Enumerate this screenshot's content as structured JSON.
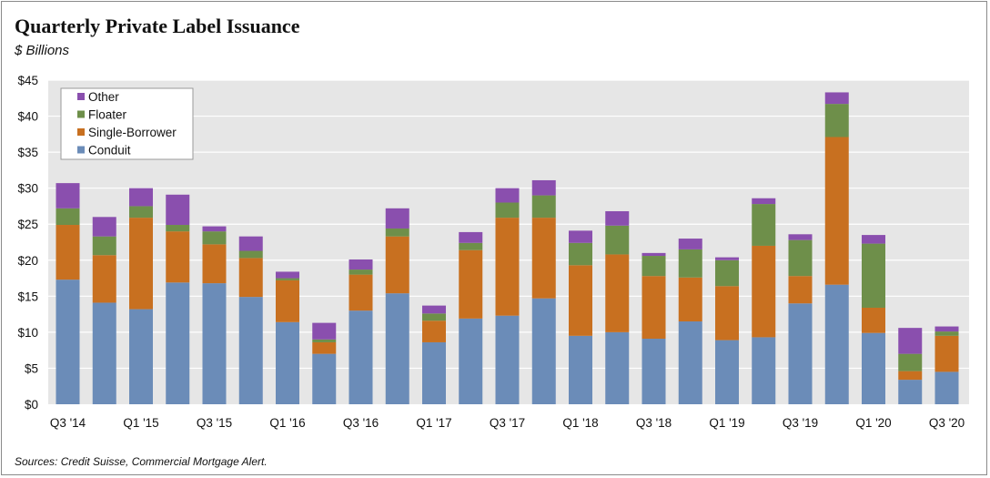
{
  "title": "Quarterly Private Label Issuance",
  "subtitle": "$ Billions",
  "source": "Sources: Credit Suisse, Commercial Mortgage Alert.",
  "chart_data": {
    "type": "bar",
    "stacked": true,
    "categories": [
      "Q3 '14",
      "Q4 '14",
      "Q1 '15",
      "Q2 '15",
      "Q3 '15",
      "Q4 '15",
      "Q1 '16",
      "Q2 '16",
      "Q3 '16",
      "Q4 '16",
      "Q1 '17",
      "Q2 '17",
      "Q3 '17",
      "Q4 '17",
      "Q1 '18",
      "Q2 '18",
      "Q3 '18",
      "Q4 '18",
      "Q1 '19",
      "Q2 '19",
      "Q3 '19",
      "Q4 '19",
      "Q1 '20",
      "Q2 '20",
      "Q3 '20"
    ],
    "x_tick_labels": [
      "Q3 '14",
      "",
      "Q1 '15",
      "",
      "Q3 '15",
      "",
      "Q1 '16",
      "",
      "Q3 '16",
      "",
      "Q1 '17",
      "",
      "Q3 '17",
      "",
      "Q1 '18",
      "",
      "Q3 '18",
      "",
      "Q1 '19",
      "",
      "Q3 '19",
      "",
      "Q1 '20",
      "",
      "Q3 '20"
    ],
    "y_ticks": [
      0,
      5,
      10,
      15,
      20,
      25,
      30,
      35,
      40,
      45
    ],
    "y_tick_labels": [
      "$0",
      "$5",
      "$10",
      "$15",
      "$20",
      "$25",
      "$30",
      "$35",
      "$40",
      "$45"
    ],
    "ylim": [
      0,
      45
    ],
    "grid": true,
    "legend_position": "top-left",
    "series": [
      {
        "name": "Conduit",
        "color": "#6b8cb8",
        "values": [
          17.3,
          14.1,
          13.2,
          16.9,
          16.8,
          14.9,
          11.4,
          7.0,
          13.0,
          15.4,
          8.6,
          11.9,
          12.3,
          14.7,
          9.5,
          10.0,
          9.1,
          11.5,
          8.9,
          9.3,
          14.0,
          16.6,
          9.9,
          3.4,
          4.5
        ]
      },
      {
        "name": "Single-Borrower",
        "color": "#c87020",
        "values": [
          7.6,
          6.6,
          12.7,
          7.1,
          5.4,
          5.4,
          5.8,
          1.6,
          5.0,
          7.9,
          3.0,
          9.5,
          13.6,
          11.2,
          9.8,
          10.8,
          8.7,
          6.1,
          7.5,
          12.7,
          3.8,
          20.5,
          3.5,
          1.2,
          5.0
        ]
      },
      {
        "name": "Floater",
        "color": "#6e8f4a",
        "values": [
          2.3,
          2.6,
          1.6,
          0.9,
          1.8,
          1.0,
          0.3,
          0.4,
          0.7,
          1.1,
          1.0,
          1.0,
          2.1,
          3.1,
          3.1,
          4.0,
          2.8,
          3.9,
          3.6,
          5.8,
          5.0,
          4.6,
          8.9,
          2.4,
          0.6
        ]
      },
      {
        "name": "Other",
        "color": "#8a4fae",
        "values": [
          3.5,
          2.7,
          2.5,
          4.2,
          0.7,
          2.0,
          0.9,
          2.3,
          1.4,
          2.8,
          1.1,
          1.5,
          2.0,
          2.1,
          1.7,
          2.0,
          0.4,
          1.5,
          0.4,
          0.8,
          0.8,
          1.6,
          1.2,
          3.6,
          0.7
        ]
      }
    ],
    "legend_order": [
      "Other",
      "Floater",
      "Single-Borrower",
      "Conduit"
    ]
  }
}
